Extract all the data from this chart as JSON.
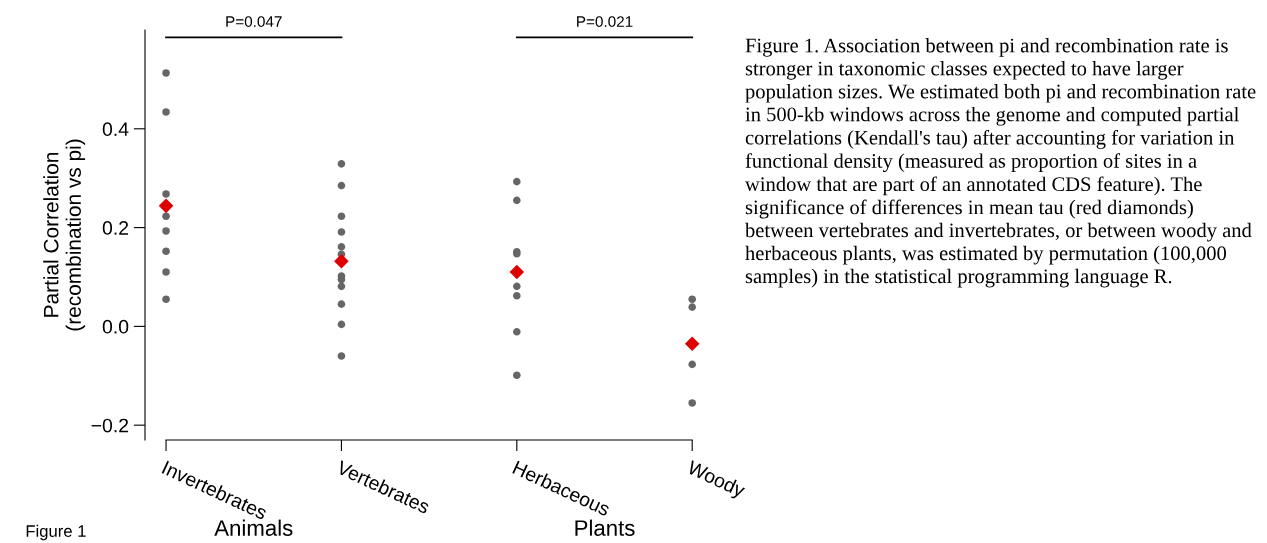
{
  "chart_data": {
    "type": "scatter",
    "ylabel": "Partial Correlation\n(recombination vs pi)",
    "categories": [
      "Invertebrates",
      "Vertebrates",
      "Herbaceous",
      "Woody"
    ],
    "ylim": [
      -0.23,
      0.6
    ],
    "yticks": [
      {
        "value": -0.2,
        "label": "−0.2"
      },
      {
        "value": 0.0,
        "label": "0.0"
      },
      {
        "value": 0.2,
        "label": "0.2"
      },
      {
        "value": 0.4,
        "label": "0.4"
      }
    ],
    "marker": "circle",
    "grid": false,
    "legend": false,
    "series": [
      {
        "color": "#666666",
        "x": [
          "Invertebrates",
          "Invertebrates",
          "Invertebrates",
          "Invertebrates",
          "Invertebrates",
          "Invertebrates",
          "Invertebrates",
          "Invertebrates",
          "Vertebrates",
          "Vertebrates",
          "Vertebrates",
          "Vertebrates",
          "Vertebrates",
          "Vertebrates",
          "Vertebrates",
          "Vertebrates",
          "Vertebrates",
          "Vertebrates",
          "Vertebrates",
          "Vertebrates",
          "Herbaceous",
          "Herbaceous",
          "Herbaceous",
          "Herbaceous",
          "Herbaceous",
          "Herbaceous",
          "Herbaceous",
          "Herbaceous",
          "Woody",
          "Woody",
          "Woody",
          "Woody"
        ],
        "values": [
          0.513,
          0.434,
          0.268,
          0.223,
          0.193,
          0.152,
          0.11,
          0.055,
          0.329,
          0.285,
          0.223,
          0.191,
          0.161,
          0.146,
          0.102,
          0.095,
          0.081,
          0.045,
          0.004,
          -0.06,
          0.293,
          0.255,
          0.151,
          0.147,
          0.081,
          0.062,
          -0.011,
          -0.099,
          0.055,
          0.039,
          -0.077,
          -0.155
        ]
      },
      {
        "color": "#dd0000",
        "marker": "diamond",
        "x": [
          "Invertebrates",
          "Vertebrates",
          "Herbaceous",
          "Woody"
        ],
        "values": [
          0.244,
          0.132,
          0.11,
          -0.035
        ]
      }
    ],
    "annotations": [
      "P=0.047",
      "P=0.021",
      "Animals",
      "Plants",
      "Figure 1",
      "Figure 1. Association between pi and recombination rate is stronger in taxonomic classes expected to have larger population sizes. We estimated both pi and recombination rate in 500-kb windows across the genome and computed partial correlations (Kendall's tau) after accounting for variation in functional density (measured as proportion of sites in a window that are part of an annotated CDS feature). The significance of differences in mean tau (red diamonds) between vertebrates and invertebrates, or between woody and herbaceous plants, was estimated by permutation (100,000 samples) in the statistical programming language R."
    ]
  }
}
